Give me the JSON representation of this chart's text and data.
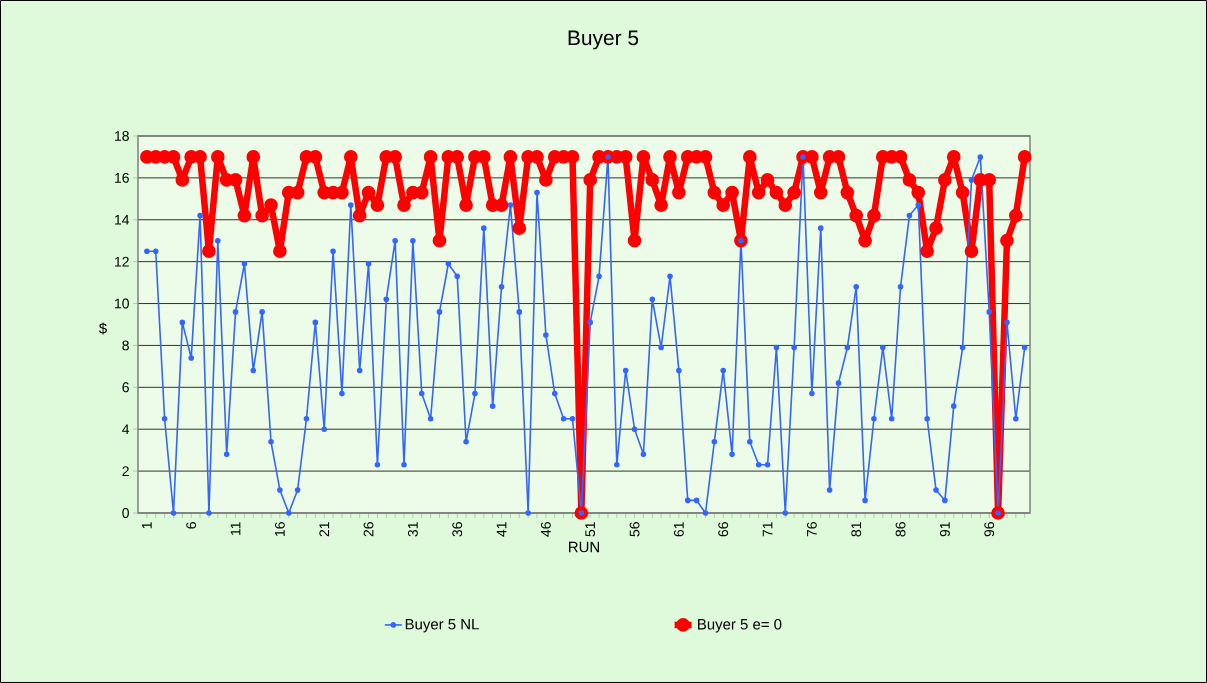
{
  "chart_data": {
    "type": "line",
    "title": "Buyer 5",
    "xlabel": "RUN",
    "ylabel": "$",
    "categories": [
      "1",
      null,
      null,
      null,
      null,
      "6",
      null,
      null,
      null,
      null,
      "11",
      null,
      null,
      null,
      null,
      "16",
      null,
      null,
      null,
      null,
      "21",
      null,
      null,
      null,
      null,
      "26",
      null,
      null,
      null,
      null,
      "31",
      null,
      null,
      null,
      null,
      "36",
      null,
      null,
      null,
      null,
      "41",
      null,
      null,
      null,
      null,
      "46",
      null,
      null,
      null,
      null,
      "51",
      null,
      null,
      null,
      null,
      "56",
      null,
      null,
      null,
      null,
      "61",
      null,
      null,
      null,
      null,
      "66",
      null,
      null,
      null,
      null,
      "71",
      null,
      null,
      null,
      null,
      "76",
      null,
      null,
      null,
      null,
      "81",
      null,
      null,
      null,
      null,
      "86",
      null,
      null,
      null,
      null,
      "91",
      null,
      null,
      null,
      null,
      "96",
      null,
      null,
      null,
      null
    ],
    "series": [
      {
        "name": "Buyer 5 NL",
        "color": "#3366ff",
        "values": [
          12.5,
          12.5,
          4.5,
          0,
          9.1,
          7.4,
          14.2,
          0,
          13.0,
          2.8,
          9.6,
          11.9,
          6.8,
          9.6,
          3.4,
          1.1,
          0,
          1.1,
          4.5,
          9.1,
          4.0,
          12.5,
          5.7,
          14.7,
          6.8,
          11.9,
          2.3,
          10.2,
          13.0,
          2.3,
          13.0,
          5.7,
          4.5,
          9.6,
          11.9,
          11.3,
          3.4,
          5.7,
          13.6,
          5.1,
          10.8,
          14.7,
          9.6,
          0,
          15.3,
          8.5,
          5.7,
          4.5,
          4.5,
          0,
          9.1,
          11.3,
          17,
          2.3,
          6.8,
          4.0,
          2.8,
          10.2,
          7.9,
          11.3,
          6.8,
          0.6,
          0.6,
          0,
          3.4,
          6.8,
          2.8,
          13.0,
          3.4,
          2.3,
          2.3,
          7.9,
          0,
          7.9,
          17,
          5.7,
          13.6,
          1.1,
          6.2,
          7.9,
          10.8,
          0.6,
          4.5,
          7.9,
          4.5,
          10.8,
          14.2,
          14.7,
          4.5,
          1.1,
          0.6,
          5.1,
          7.9,
          15.9,
          17,
          9.6,
          0,
          9.1,
          4.5,
          7.9
        ]
      },
      {
        "name": "Buyer 5 e= 0",
        "color": "#ff0000",
        "values": [
          17,
          17,
          17,
          17,
          15.9,
          17,
          17,
          12.5,
          17,
          15.9,
          15.9,
          14.2,
          17,
          14.2,
          14.7,
          12.5,
          15.3,
          15.3,
          17,
          17,
          15.3,
          15.3,
          15.3,
          17,
          14.2,
          15.3,
          14.7,
          17,
          17,
          14.7,
          15.3,
          15.3,
          17,
          13.0,
          17,
          17,
          14.7,
          17,
          17,
          14.7,
          14.7,
          17,
          13.6,
          17,
          17,
          15.9,
          17,
          17,
          17,
          0,
          15.9,
          17,
          17,
          17,
          17,
          13.0,
          17,
          15.9,
          14.7,
          17,
          15.3,
          17,
          17,
          17,
          15.3,
          14.7,
          15.3,
          13.0,
          17,
          15.3,
          15.9,
          15.3,
          14.7,
          15.3,
          17,
          17,
          15.3,
          17,
          17,
          15.3,
          14.2,
          13.0,
          14.2,
          17,
          17,
          17,
          15.9,
          15.3,
          12.5,
          13.6,
          15.9,
          17,
          15.3,
          12.5,
          15.9,
          15.9,
          0,
          13.0,
          14.2,
          17
        ]
      }
    ],
    "ylim": [
      0,
      18
    ],
    "yticks": [
      0,
      2,
      4,
      6,
      8,
      10,
      12,
      14,
      16,
      18
    ],
    "grid": "y",
    "legend": "bottom",
    "marker": "circle",
    "line_style": "solid"
  }
}
